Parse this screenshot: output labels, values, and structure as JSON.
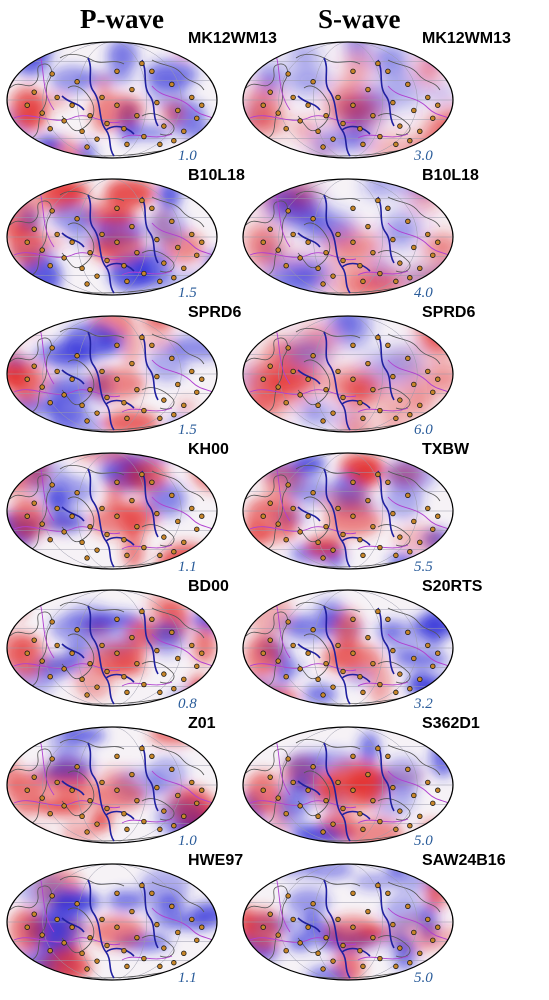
{
  "columns": [
    {
      "title": "P-wave",
      "panels": [
        {
          "model": "MK12WM13",
          "scale": "1.0"
        },
        {
          "model": "B10L18",
          "scale": "1.5"
        },
        {
          "model": "SPRD6",
          "scale": "1.5"
        },
        {
          "model": "KH00",
          "scale": "1.1"
        },
        {
          "model": "BD00",
          "scale": "0.8"
        },
        {
          "model": "Z01",
          "scale": "1.0"
        },
        {
          "model": "HWE97",
          "scale": "1.1"
        }
      ]
    },
    {
      "title": "S-wave",
      "panels": [
        {
          "model": "MK12WM13",
          "scale": "3.0"
        },
        {
          "model": "B10L18",
          "scale": "4.0"
        },
        {
          "model": "SPRD6",
          "scale": "6.0"
        },
        {
          "model": "TXBW",
          "scale": "5.5"
        },
        {
          "model": "S20RTS",
          "scale": "3.2"
        },
        {
          "model": "S362D1",
          "scale": "5.0"
        },
        {
          "model": "SAW24B16",
          "scale": "5.0"
        }
      ]
    }
  ],
  "colors": {
    "fast_anomaly": "#2b2bd9",
    "slow_anomaly": "#e32626",
    "hotspot_fill": "#c8862a",
    "plate_boundary": "#2020a0",
    "secondary_boundary": "#b040d0",
    "coastline": "#555555",
    "scale_text": "#2a5c9a"
  }
}
